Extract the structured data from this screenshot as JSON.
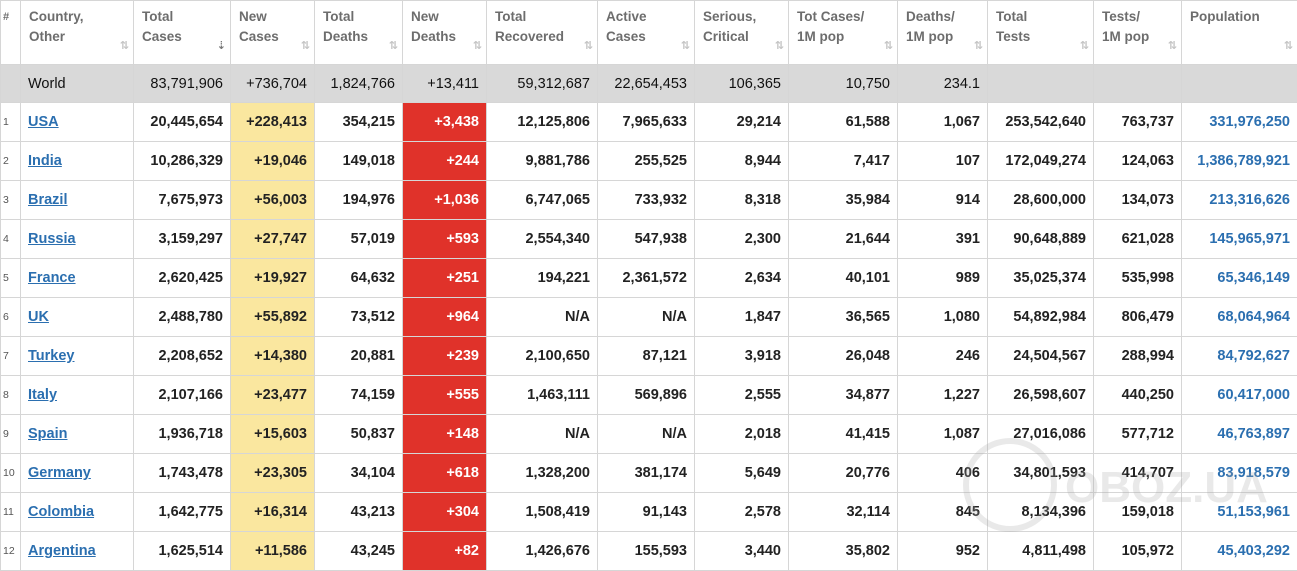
{
  "header": {
    "hash": "#",
    "columns": [
      {
        "l1": "Country,",
        "l2": "Other"
      },
      {
        "l1": "Total",
        "l2": "Cases"
      },
      {
        "l1": "New",
        "l2": "Cases"
      },
      {
        "l1": "Total",
        "l2": "Deaths"
      },
      {
        "l1": "New",
        "l2": "Deaths"
      },
      {
        "l1": "Total",
        "l2": "Recovered"
      },
      {
        "l1": "Active",
        "l2": "Cases"
      },
      {
        "l1": "Serious,",
        "l2": "Critical"
      },
      {
        "l1": "Tot Cases/",
        "l2": "1M pop"
      },
      {
        "l1": "Deaths/",
        "l2": "1M pop"
      },
      {
        "l1": "Total",
        "l2": "Tests"
      },
      {
        "l1": "Tests/",
        "l2": "1M pop"
      },
      {
        "l1": "Population",
        "l2": ""
      }
    ],
    "sort_icon": "⇅",
    "sort_active_icon": "⇣"
  },
  "world": {
    "country": "World",
    "total_cases": "83,791,906",
    "new_cases": "+736,704",
    "total_deaths": "1,824,766",
    "new_deaths": "+13,411",
    "recovered": "59,312,687",
    "active": "22,654,453",
    "critical": "106,365",
    "cases_1m": "10,750",
    "deaths_1m": "234.1",
    "tests": "",
    "tests_1m": "",
    "population": ""
  },
  "rows": [
    {
      "n": "1",
      "country": "USA",
      "total_cases": "20,445,654",
      "new_cases": "+228,413",
      "total_deaths": "354,215",
      "new_deaths": "+3,438",
      "recovered": "12,125,806",
      "active": "7,965,633",
      "critical": "29,214",
      "cases_1m": "61,588",
      "deaths_1m": "1,067",
      "tests": "253,542,640",
      "tests_1m": "763,737",
      "population": "331,976,250"
    },
    {
      "n": "2",
      "country": "India",
      "total_cases": "10,286,329",
      "new_cases": "+19,046",
      "total_deaths": "149,018",
      "new_deaths": "+244",
      "recovered": "9,881,786",
      "active": "255,525",
      "critical": "8,944",
      "cases_1m": "7,417",
      "deaths_1m": "107",
      "tests": "172,049,274",
      "tests_1m": "124,063",
      "population": "1,386,789,921"
    },
    {
      "n": "3",
      "country": "Brazil",
      "total_cases": "7,675,973",
      "new_cases": "+56,003",
      "total_deaths": "194,976",
      "new_deaths": "+1,036",
      "recovered": "6,747,065",
      "active": "733,932",
      "critical": "8,318",
      "cases_1m": "35,984",
      "deaths_1m": "914",
      "tests": "28,600,000",
      "tests_1m": "134,073",
      "population": "213,316,626"
    },
    {
      "n": "4",
      "country": "Russia",
      "total_cases": "3,159,297",
      "new_cases": "+27,747",
      "total_deaths": "57,019",
      "new_deaths": "+593",
      "recovered": "2,554,340",
      "active": "547,938",
      "critical": "2,300",
      "cases_1m": "21,644",
      "deaths_1m": "391",
      "tests": "90,648,889",
      "tests_1m": "621,028",
      "population": "145,965,971"
    },
    {
      "n": "5",
      "country": "France",
      "total_cases": "2,620,425",
      "new_cases": "+19,927",
      "total_deaths": "64,632",
      "new_deaths": "+251",
      "recovered": "194,221",
      "active": "2,361,572",
      "critical": "2,634",
      "cases_1m": "40,101",
      "deaths_1m": "989",
      "tests": "35,025,374",
      "tests_1m": "535,998",
      "population": "65,346,149"
    },
    {
      "n": "6",
      "country": "UK",
      "total_cases": "2,488,780",
      "new_cases": "+55,892",
      "total_deaths": "73,512",
      "new_deaths": "+964",
      "recovered": "N/A",
      "active": "N/A",
      "critical": "1,847",
      "cases_1m": "36,565",
      "deaths_1m": "1,080",
      "tests": "54,892,984",
      "tests_1m": "806,479",
      "population": "68,064,964"
    },
    {
      "n": "7",
      "country": "Turkey",
      "total_cases": "2,208,652",
      "new_cases": "+14,380",
      "total_deaths": "20,881",
      "new_deaths": "+239",
      "recovered": "2,100,650",
      "active": "87,121",
      "critical": "3,918",
      "cases_1m": "26,048",
      "deaths_1m": "246",
      "tests": "24,504,567",
      "tests_1m": "288,994",
      "population": "84,792,627"
    },
    {
      "n": "8",
      "country": "Italy",
      "total_cases": "2,107,166",
      "new_cases": "+23,477",
      "total_deaths": "74,159",
      "new_deaths": "+555",
      "recovered": "1,463,111",
      "active": "569,896",
      "critical": "2,555",
      "cases_1m": "34,877",
      "deaths_1m": "1,227",
      "tests": "26,598,607",
      "tests_1m": "440,250",
      "population": "60,417,000"
    },
    {
      "n": "9",
      "country": "Spain",
      "total_cases": "1,936,718",
      "new_cases": "+15,603",
      "total_deaths": "50,837",
      "new_deaths": "+148",
      "recovered": "N/A",
      "active": "N/A",
      "critical": "2,018",
      "cases_1m": "41,415",
      "deaths_1m": "1,087",
      "tests": "27,016,086",
      "tests_1m": "577,712",
      "population": "46,763,897"
    },
    {
      "n": "10",
      "country": "Germany",
      "total_cases": "1,743,478",
      "new_cases": "+23,305",
      "total_deaths": "34,104",
      "new_deaths": "+618",
      "recovered": "1,328,200",
      "active": "381,174",
      "critical": "5,649",
      "cases_1m": "20,776",
      "deaths_1m": "406",
      "tests": "34,801,593",
      "tests_1m": "414,707",
      "population": "83,918,579"
    },
    {
      "n": "11",
      "country": "Colombia",
      "total_cases": "1,642,775",
      "new_cases": "+16,314",
      "total_deaths": "43,213",
      "new_deaths": "+304",
      "recovered": "1,508,419",
      "active": "91,143",
      "critical": "2,578",
      "cases_1m": "32,114",
      "deaths_1m": "845",
      "tests": "8,134,396",
      "tests_1m": "159,018",
      "population": "51,153,961"
    },
    {
      "n": "12",
      "country": "Argentina",
      "total_cases": "1,625,514",
      "new_cases": "+11,586",
      "total_deaths": "43,245",
      "new_deaths": "+82",
      "recovered": "1,426,676",
      "active": "155,593",
      "critical": "3,440",
      "cases_1m": "35,802",
      "deaths_1m": "952",
      "tests": "4,811,498",
      "tests_1m": "105,972",
      "population": "45,403,292"
    }
  ],
  "watermark": {
    "text": "OBOZ.UA"
  },
  "colors": {
    "new_cases_bg": "#fae79f",
    "new_deaths_bg": "#e0322a",
    "link": "#2b6fb0",
    "world_bg": "#d9d9d9"
  }
}
